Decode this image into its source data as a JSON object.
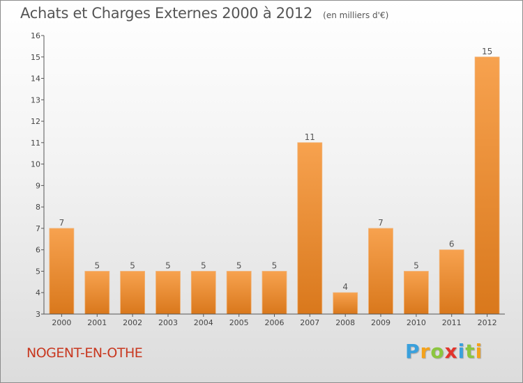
{
  "chart_data": {
    "type": "bar",
    "title": "Achats et Charges Externes 2000 à 2012",
    "subtitle": "(en milliers d'€)",
    "categories": [
      "2000",
      "2001",
      "2002",
      "2003",
      "2004",
      "2005",
      "2006",
      "2007",
      "2008",
      "2009",
      "2010",
      "2011",
      "2012"
    ],
    "values": [
      7,
      5,
      5,
      5,
      5,
      5,
      5,
      11,
      4,
      7,
      5,
      6,
      15
    ],
    "value_labels": [
      "7",
      "5",
      "5",
      "5",
      "5",
      "5",
      "5",
      "11",
      "4",
      "7",
      "5",
      "6",
      "15"
    ],
    "ylim": [
      3,
      16
    ],
    "yticks": [
      "3",
      "4",
      "5",
      "6",
      "7",
      "8",
      "9",
      "10",
      "11",
      "12",
      "13",
      "14",
      "15",
      "16"
    ],
    "xlabel": "",
    "ylabel": "",
    "grid": false,
    "bar_color_top": "#f7a24f",
    "bar_color_bottom": "#d9781c"
  },
  "footer": {
    "location": "NOGENT-EN-OTHE",
    "location_color": "#c8371f",
    "brand_letters": [
      "P",
      "r",
      "o",
      "x",
      "i",
      "t",
      "i"
    ],
    "brand_colors": [
      "#3aa0dc",
      "#f4a21b",
      "#8cc63f",
      "#e2342c",
      "#3aa0dc",
      "#8cc63f",
      "#f4a21b"
    ]
  }
}
